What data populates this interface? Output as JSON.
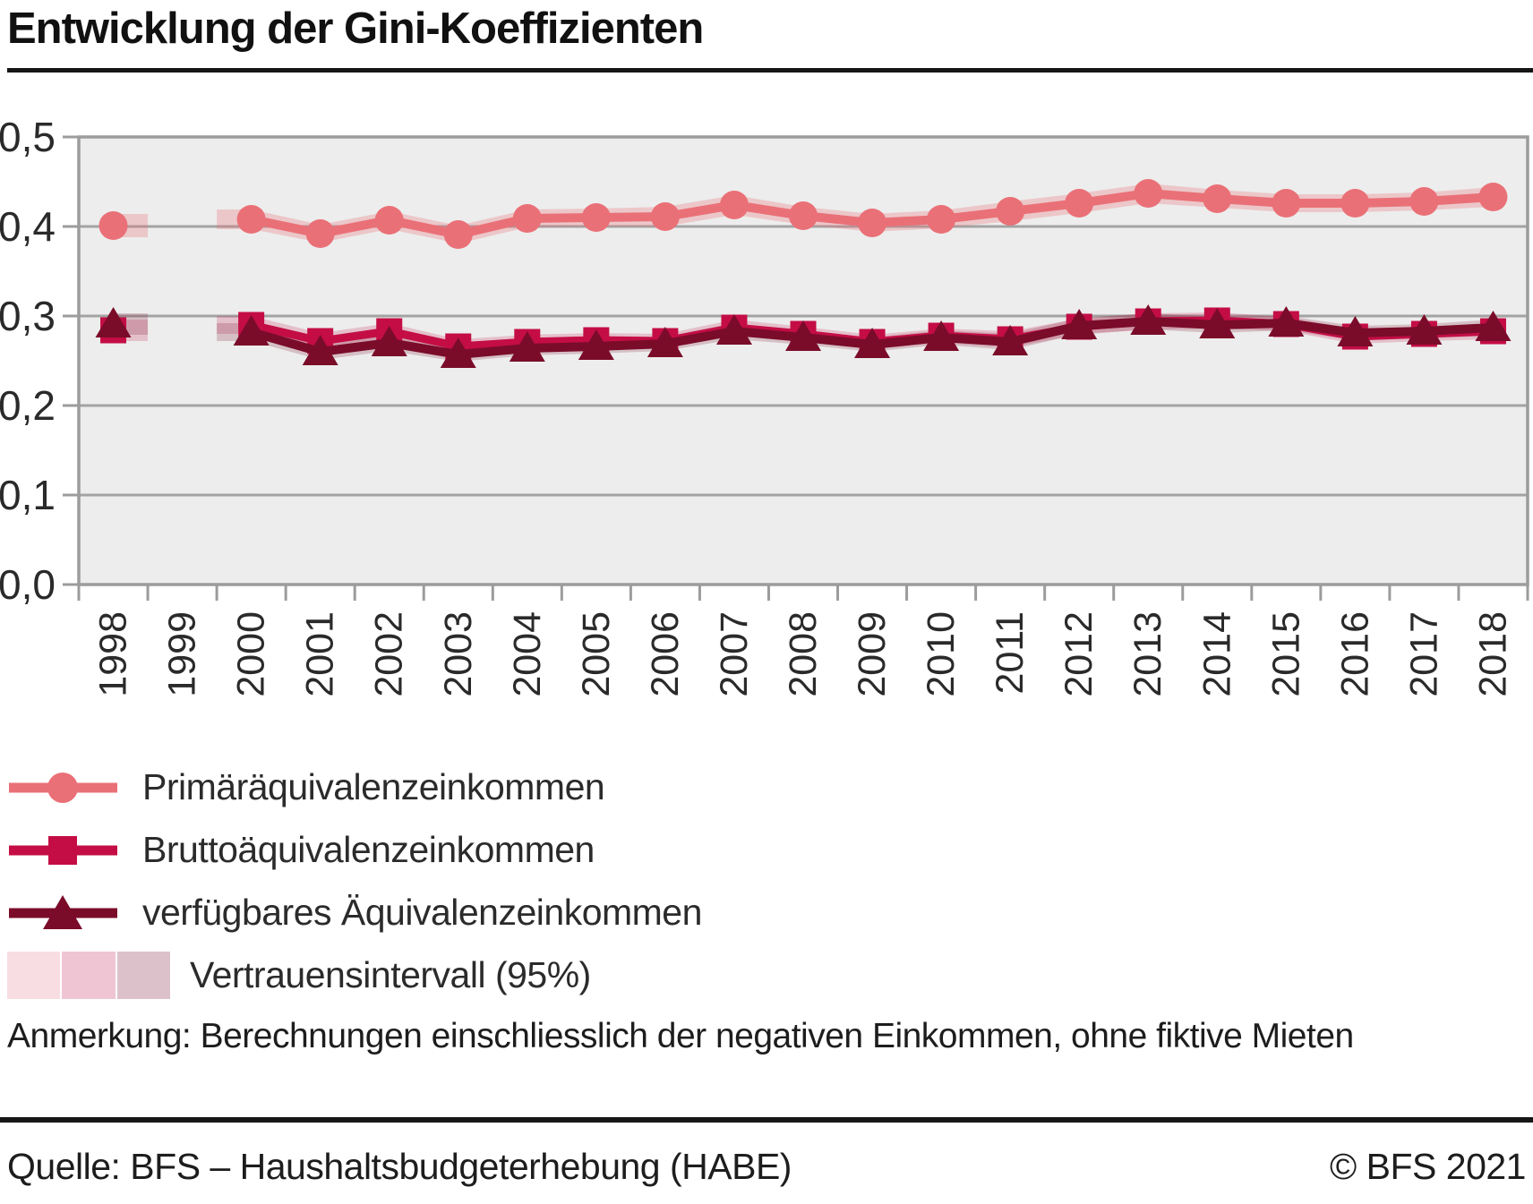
{
  "title": "Entwicklung der Gini-Koeffizienten",
  "note": "Anmerkung: Berechnungen einschliesslich der negativen Einkommen, ohne fiktive Mieten",
  "footer": {
    "source": "Quelle: BFS – Haushaltsbudgeterhebung (HABE)",
    "copyright": "© BFS 2021"
  },
  "chart_data": {
    "type": "line",
    "title": "Entwicklung der Gini-Koeffizienten",
    "x": [
      "1998",
      "1999",
      "2000",
      "2001",
      "2002",
      "2003",
      "2004",
      "2005",
      "2006",
      "2007",
      "2008",
      "2009",
      "2010",
      "2011",
      "2012",
      "2013",
      "2014",
      "2015",
      "2016",
      "2017",
      "2018"
    ],
    "ylim": [
      0.0,
      0.5
    ],
    "y_ticks": [
      0,
      0.1,
      0.2,
      0.3,
      0.4,
      0.5
    ],
    "y_tick_labels": [
      "0,0",
      "0,1",
      "0,2",
      "0,3",
      "0,4",
      "0,5"
    ],
    "grid": true,
    "legend_position": "bottom-left",
    "missing_year": "1999",
    "series": [
      {
        "name": "Primäräquivalenzeinkommen",
        "marker": "circle",
        "color": "#ea7077",
        "band_color": "rgba(234,112,119,0.30)",
        "values": [
          0.401,
          null,
          0.408,
          0.392,
          0.407,
          0.391,
          0.409,
          0.41,
          0.411,
          0.424,
          0.412,
          0.404,
          0.408,
          0.417,
          0.426,
          0.437,
          0.431,
          0.426,
          0.426,
          0.428,
          0.433
        ],
        "ci_half_width": [
          0.013,
          null,
          0.011,
          0.01,
          0.01,
          0.01,
          0.01,
          0.01,
          0.011,
          0.011,
          0.01,
          0.01,
          0.01,
          0.011,
          0.011,
          0.011,
          0.01,
          0.01,
          0.01,
          0.01,
          0.011
        ]
      },
      {
        "name": "Bruttoäquivalenzeinkommen",
        "marker": "square",
        "color": "#c40d45",
        "band_color": "rgba(196,13,69,0.20)",
        "values": [
          0.284,
          null,
          0.29,
          0.272,
          0.283,
          0.266,
          0.271,
          0.273,
          0.272,
          0.287,
          0.28,
          0.271,
          0.278,
          0.274,
          0.288,
          0.294,
          0.295,
          0.291,
          0.277,
          0.28,
          0.283
        ],
        "ci_half_width": [
          0.012,
          null,
          0.01,
          0.009,
          0.009,
          0.008,
          0.008,
          0.008,
          0.008,
          0.009,
          0.008,
          0.008,
          0.008,
          0.009,
          0.009,
          0.009,
          0.009,
          0.008,
          0.008,
          0.008,
          0.009
        ]
      },
      {
        "name": "verfügbares Äquivalenzeinkommen",
        "marker": "triangle",
        "color": "#7a0c29",
        "band_color": "rgba(122,12,41,0.20)",
        "values": [
          0.291,
          null,
          0.282,
          0.26,
          0.27,
          0.257,
          0.264,
          0.266,
          0.269,
          0.283,
          0.276,
          0.268,
          0.276,
          0.271,
          0.289,
          0.294,
          0.29,
          0.292,
          0.281,
          0.283,
          0.287
        ],
        "ci_half_width": [
          0.012,
          null,
          0.01,
          0.009,
          0.009,
          0.008,
          0.008,
          0.008,
          0.008,
          0.009,
          0.008,
          0.008,
          0.008,
          0.009,
          0.009,
          0.009,
          0.009,
          0.008,
          0.008,
          0.008,
          0.009
        ]
      }
    ],
    "ci_legend": {
      "label": "Vertrauensintervall (95%)",
      "swatches": [
        "#f8dde2",
        "#efc5d3",
        "#dcc1cb"
      ]
    },
    "colors": {
      "plot_bg": "#ededed",
      "grid": "#a3a3a3",
      "axis": "#9c9c9c",
      "tick_text": "#2a2a2a"
    }
  }
}
